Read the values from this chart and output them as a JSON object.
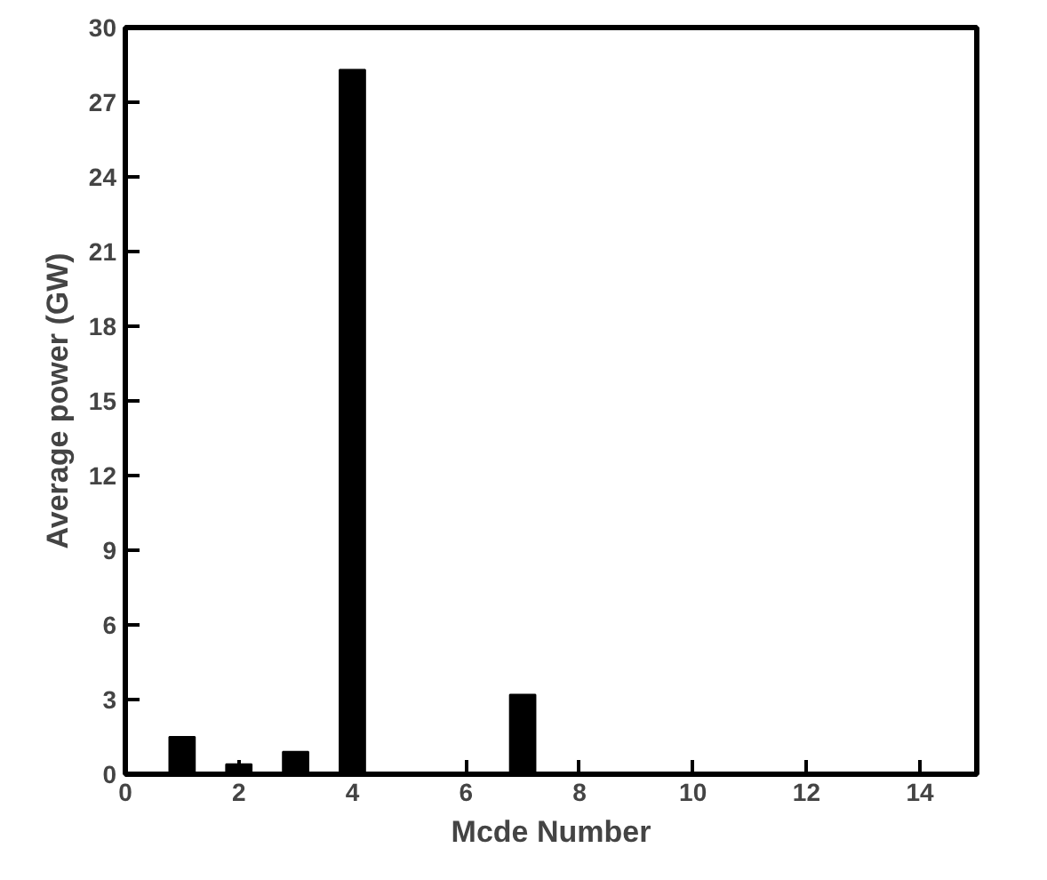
{
  "chart_data": {
    "type": "bar",
    "xlabel": "Mcde Number",
    "ylabel": "Average power (GW)",
    "x": [
      1,
      2,
      3,
      4,
      7
    ],
    "values": [
      1.5,
      0.4,
      0.9,
      28.3,
      3.2
    ],
    "color": "#000000",
    "xlim": [
      0,
      15
    ],
    "xticks": [
      0,
      2,
      4,
      6,
      8,
      10,
      12,
      14
    ],
    "ylim": [
      0,
      30
    ],
    "yticks": [
      0,
      3,
      6,
      9,
      12,
      15,
      18,
      21,
      24,
      27,
      30
    ],
    "grid": false
  }
}
